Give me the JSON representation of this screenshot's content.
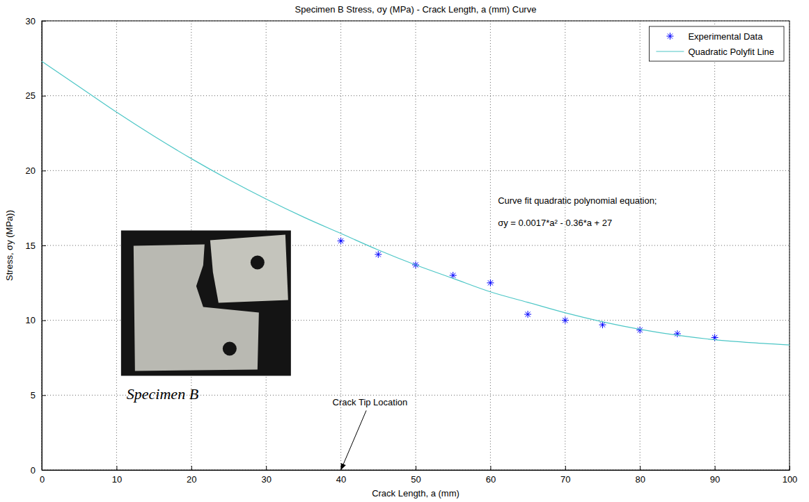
{
  "chart_data": {
    "type": "scatter",
    "title": "Specimen B Stress, σy (MPa) - Crack Length, a (mm) Curve",
    "x_label": "Crack Length, a (mm)",
    "y_label": "Stress, σy (MPa))",
    "xlim": [
      0,
      100
    ],
    "ylim": [
      0,
      30
    ],
    "xticks": [
      0,
      10,
      20,
      30,
      40,
      50,
      60,
      70,
      80,
      90,
      100
    ],
    "yticks": [
      0,
      5,
      10,
      15,
      20,
      25,
      30
    ],
    "grid": true,
    "legend": "upper right",
    "series": [
      {
        "name": "Experimental Data",
        "type": "scatter",
        "color": "#0000ff",
        "marker": "asterisk",
        "x": [
          40,
          45,
          50,
          55,
          60,
          65,
          70,
          75,
          80,
          85,
          90
        ],
        "values": [
          15.3,
          14.4,
          13.7,
          13.0,
          12.5,
          10.4,
          10.0,
          9.7,
          9.35,
          9.1,
          8.85
        ]
      },
      {
        "name": "Quadratic Polyfit Line",
        "type": "line",
        "color": "#4cc6c6",
        "line_style": "solid",
        "x": [
          0,
          5,
          10,
          15,
          20,
          25,
          30,
          35,
          40,
          45,
          50,
          55,
          60,
          65,
          70,
          75,
          80,
          85,
          90,
          95,
          100
        ],
        "values": [
          27.3,
          25.6,
          23.9,
          22.3,
          20.8,
          19.4,
          18.1,
          16.9,
          15.8,
          14.7,
          13.7,
          12.8,
          11.9,
          11.2,
          10.5,
          9.9,
          9.4,
          9.0,
          8.7,
          8.5,
          8.35
        ]
      }
    ],
    "annotations": [
      {
        "text": "Curve fit quadratic polynomial equation;"
      },
      {
        "text": "σy = 0.0017*a² - 0.36*a + 27"
      },
      {
        "text": "Crack Tip Location",
        "x": 40,
        "y": 0
      }
    ],
    "inset": {
      "caption": "Specimen B"
    }
  }
}
